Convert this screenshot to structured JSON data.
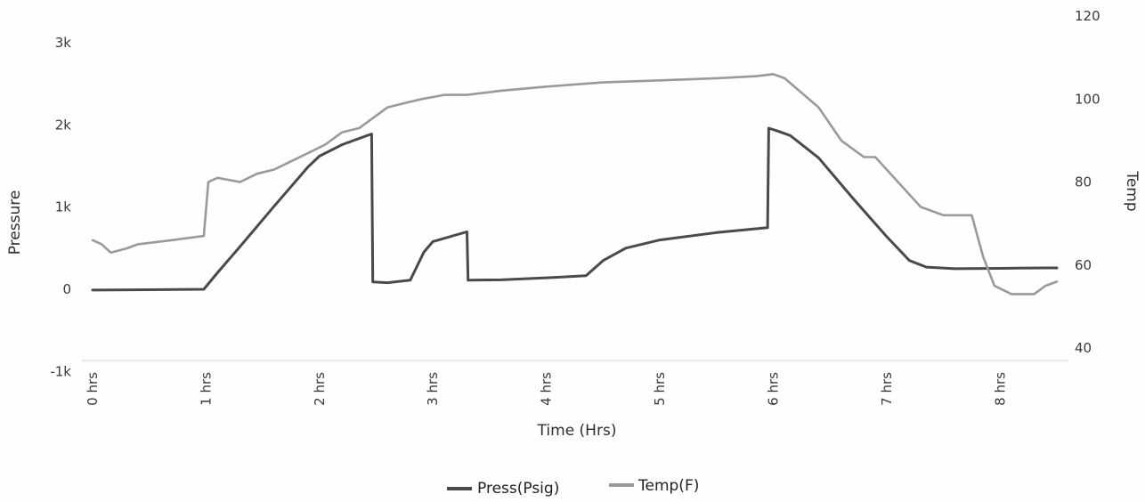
{
  "chart_data": {
    "type": "line",
    "xlabel": "Time (Hrs)",
    "ylabel_left": "Pressure",
    "ylabel_right": "Temp",
    "x_ticks": [
      {
        "value": 0,
        "label": "0 hrs"
      },
      {
        "value": 1,
        "label": "1 hrs"
      },
      {
        "value": 2,
        "label": "2 hrs"
      },
      {
        "value": 3,
        "label": "3 hrs"
      },
      {
        "value": 4,
        "label": "4 hrs"
      },
      {
        "value": 5,
        "label": "5 hrs"
      },
      {
        "value": 6,
        "label": "6 hrs"
      },
      {
        "value": 7,
        "label": "7 hrs"
      },
      {
        "value": 8,
        "label": "8 hrs"
      }
    ],
    "xlim": [
      -0.1,
      8.6
    ],
    "y_left": {
      "ylim": [
        -1000,
        3000
      ],
      "ticks": [
        {
          "value": -1000,
          "label": "-1k"
        },
        {
          "value": 0,
          "label": "0"
        },
        {
          "value": 1000,
          "label": "1k"
        },
        {
          "value": 2000,
          "label": "2k"
        },
        {
          "value": 3000,
          "label": "3k"
        }
      ]
    },
    "y_right": {
      "ylim": [
        40,
        120
      ],
      "ticks": [
        {
          "value": 40,
          "label": "40"
        },
        {
          "value": 60,
          "label": "60"
        },
        {
          "value": 80,
          "label": "80"
        },
        {
          "value": 100,
          "label": "100"
        },
        {
          "value": 120,
          "label": "120"
        }
      ]
    },
    "grid": false,
    "legend_position": "bottom-center",
    "series": [
      {
        "name": "Press(Psig)",
        "axis": "left",
        "color": "#4a4a4a",
        "points": [
          [
            0.0,
            -10
          ],
          [
            0.5,
            -5
          ],
          [
            0.98,
            0
          ],
          [
            1.1,
            200
          ],
          [
            1.3,
            520
          ],
          [
            1.6,
            1010
          ],
          [
            1.9,
            1490
          ],
          [
            2.0,
            1620
          ],
          [
            2.2,
            1760
          ],
          [
            2.42,
            1870
          ],
          [
            2.46,
            1890
          ],
          [
            2.47,
            90
          ],
          [
            2.6,
            80
          ],
          [
            2.8,
            110
          ],
          [
            2.92,
            450
          ],
          [
            3.0,
            580
          ],
          [
            3.15,
            640
          ],
          [
            3.3,
            700
          ],
          [
            3.31,
            110
          ],
          [
            3.6,
            115
          ],
          [
            4.0,
            140
          ],
          [
            4.35,
            165
          ],
          [
            4.5,
            350
          ],
          [
            4.7,
            500
          ],
          [
            5.0,
            600
          ],
          [
            5.5,
            690
          ],
          [
            5.95,
            750
          ],
          [
            5.96,
            1960
          ],
          [
            6.05,
            1920
          ],
          [
            6.15,
            1870
          ],
          [
            6.4,
            1600
          ],
          [
            6.7,
            1110
          ],
          [
            7.0,
            640
          ],
          [
            7.2,
            350
          ],
          [
            7.35,
            270
          ],
          [
            7.6,
            250
          ],
          [
            8.0,
            255
          ],
          [
            8.4,
            260
          ],
          [
            8.5,
            260
          ]
        ]
      },
      {
        "name": "Temp(F)",
        "axis": "right",
        "color": "#9a9a9a",
        "points": [
          [
            0.0,
            66
          ],
          [
            0.08,
            65
          ],
          [
            0.16,
            63
          ],
          [
            0.3,
            64
          ],
          [
            0.4,
            65
          ],
          [
            0.7,
            66
          ],
          [
            0.98,
            67
          ],
          [
            1.02,
            80
          ],
          [
            1.1,
            81
          ],
          [
            1.3,
            80
          ],
          [
            1.45,
            82
          ],
          [
            1.6,
            83
          ],
          [
            1.75,
            85
          ],
          [
            1.9,
            87
          ],
          [
            2.05,
            89
          ],
          [
            2.2,
            92
          ],
          [
            2.35,
            93
          ],
          [
            2.45,
            95
          ],
          [
            2.6,
            98
          ],
          [
            2.75,
            99
          ],
          [
            2.9,
            100
          ],
          [
            3.1,
            101
          ],
          [
            3.3,
            101
          ],
          [
            3.6,
            102
          ],
          [
            4.0,
            103
          ],
          [
            4.5,
            104
          ],
          [
            5.0,
            104.5
          ],
          [
            5.5,
            105
          ],
          [
            5.85,
            105.5
          ],
          [
            6.0,
            106
          ],
          [
            6.1,
            105
          ],
          [
            6.4,
            98
          ],
          [
            6.6,
            90
          ],
          [
            6.8,
            86
          ],
          [
            6.9,
            86
          ],
          [
            7.1,
            80
          ],
          [
            7.3,
            74
          ],
          [
            7.5,
            72
          ],
          [
            7.75,
            72
          ],
          [
            7.85,
            62
          ],
          [
            7.95,
            55
          ],
          [
            8.1,
            53
          ],
          [
            8.2,
            53
          ],
          [
            8.3,
            53
          ],
          [
            8.4,
            55
          ],
          [
            8.5,
            56
          ]
        ]
      }
    ],
    "legend": [
      {
        "label": "Press(Psig)",
        "color": "#4a4a4a"
      },
      {
        "label": "Temp(F)",
        "color": "#9a9a9a"
      }
    ]
  }
}
